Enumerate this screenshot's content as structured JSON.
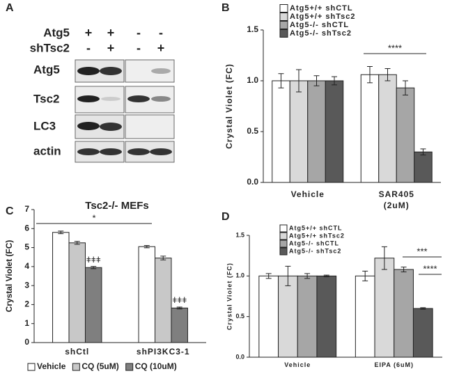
{
  "panel_labels": [
    "A",
    "B",
    "C",
    "D"
  ],
  "blot": {
    "labels": [
      "Atg5",
      "shTsc2"
    ],
    "lanes": [
      [
        "+",
        "+",
        "-",
        "-"
      ],
      [
        "-",
        "+",
        "-",
        "+"
      ]
    ],
    "rows": [
      "Atg5",
      "Tsc2",
      "LC3",
      "actin"
    ]
  },
  "chart_data": [
    {
      "type": "bar",
      "ylabel": "Crystal Violet (FC)",
      "categories": [
        "Vehicle",
        "SAR405 (2uM)"
      ],
      "series": [
        {
          "name": "Atg5+/+ shCTL",
          "color": "#ffffff",
          "values": [
            1.0,
            1.06
          ],
          "errors": [
            0.07,
            0.08
          ]
        },
        {
          "name": "Atg5+/+ shTsc2",
          "color": "#d9d9d9",
          "values": [
            1.0,
            1.06
          ],
          "errors": [
            0.11,
            0.06
          ]
        },
        {
          "name": "Atg5-/- shCTL",
          "color": "#a6a6a6",
          "values": [
            1.0,
            0.93
          ],
          "errors": [
            0.05,
            0.07
          ]
        },
        {
          "name": "Atg5-/- shTsc2",
          "color": "#595959",
          "values": [
            1.0,
            0.3
          ],
          "errors": [
            0.04,
            0.03
          ]
        }
      ],
      "ylim": [
        0,
        1.5
      ],
      "yticks": [
        {
          "value": 0,
          "label": "0.0"
        },
        0.5,
        {
          "value": 1,
          "label": "1.0"
        },
        1.5
      ],
      "annotations": [
        "****"
      ],
      "legend": "top-left"
    },
    {
      "type": "bar",
      "title": "Tsc2-/- MEFs",
      "ylabel": "Crystal Violet (FC)",
      "categories": [
        "shCtl",
        "shPI3KC3-1"
      ],
      "series": [
        {
          "name": "Vehicle",
          "color": "#ffffff",
          "values": [
            5.8,
            5.05
          ],
          "errors": [
            0.07,
            0.06
          ]
        },
        {
          "name": "CQ (5uM)",
          "color": "#c8c8c8",
          "values": [
            5.25,
            4.45
          ],
          "errors": [
            0.08,
            0.1
          ]
        },
        {
          "name": "CQ (10uM)",
          "color": "#7f7f7f",
          "values": [
            3.95,
            1.82
          ],
          "errors": [
            0.06,
            0.05
          ],
          "significance": [
            "ǂǂǂ",
            "ǂǂǂ"
          ]
        }
      ],
      "ylim": [
        0,
        7
      ],
      "yticks": [
        0,
        1,
        2,
        3,
        4,
        5,
        6,
        7
      ],
      "annotations": [
        "*"
      ],
      "legend": "bottom"
    },
    {
      "type": "bar",
      "ylabel": "Crystal Violet (FC)",
      "categories": [
        "Vehicle",
        "EIPA (6uM)"
      ],
      "series": [
        {
          "name": "Atg5+/+ shCTL",
          "color": "#ffffff",
          "values": [
            1.0,
            1.0
          ],
          "errors": [
            0.03,
            0.06
          ]
        },
        {
          "name": "Atg5+/+ shTsc2",
          "color": "#d9d9d9",
          "values": [
            1.0,
            1.22
          ],
          "errors": [
            0.12,
            0.14
          ]
        },
        {
          "name": "Atg5-/- shCTL",
          "color": "#a6a6a6",
          "values": [
            1.0,
            1.08
          ],
          "errors": [
            0.03,
            0.03
          ]
        },
        {
          "name": "Atg5-/- shTsc2",
          "color": "#595959",
          "values": [
            1.0,
            0.6
          ],
          "errors": [
            0.01,
            0.01
          ]
        }
      ],
      "ylim": [
        0,
        1.5
      ],
      "yticks": [
        {
          "value": 0,
          "label": "0.0"
        },
        0.5,
        {
          "value": 1,
          "label": "1.0"
        },
        1.5
      ],
      "annotations": [
        "***",
        "****"
      ],
      "legend": "top-left"
    }
  ]
}
